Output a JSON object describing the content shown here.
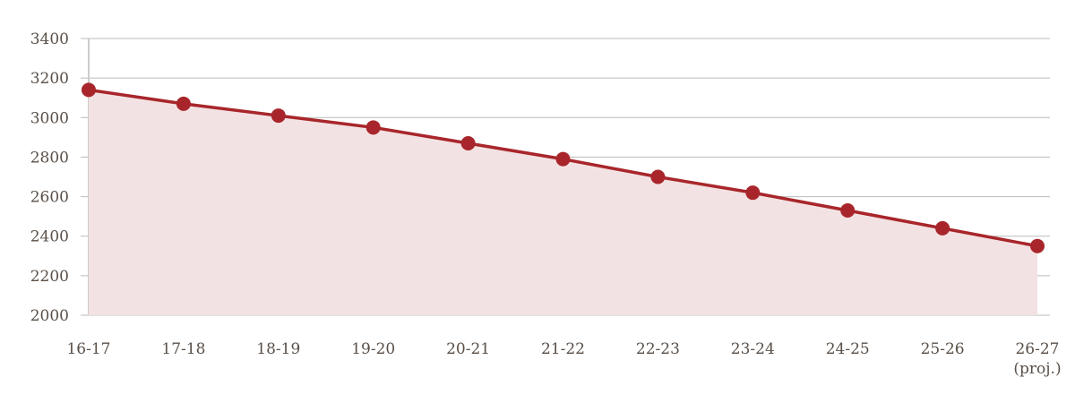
{
  "chart_data": {
    "type": "area",
    "title": "",
    "xlabel": "",
    "ylabel": "",
    "categories": [
      "16-17",
      "17-18",
      "18-19",
      "19-20",
      "20-21",
      "21-22",
      "22-23",
      "23-24",
      "24-25",
      "25-26",
      "26-27 (proj.)"
    ],
    "category_lines": [
      [
        "16-17"
      ],
      [
        "17-18"
      ],
      [
        "18-19"
      ],
      [
        "19-20"
      ],
      [
        "20-21"
      ],
      [
        "21-22"
      ],
      [
        "22-23"
      ],
      [
        "23-24"
      ],
      [
        "24-25"
      ],
      [
        "25-26"
      ],
      [
        "26-27",
        "(proj.)"
      ]
    ],
    "values": [
      3140,
      3070,
      3010,
      2950,
      2870,
      2790,
      2700,
      2620,
      2530,
      2440,
      2350
    ],
    "ylim": [
      2000,
      3400
    ],
    "yticks": [
      2000,
      2200,
      2400,
      2600,
      2800,
      3000,
      3200,
      3400
    ],
    "grid": true,
    "legend": "none",
    "colors": {
      "line": "#a8262b",
      "fill": "#f3e2e3",
      "grid": "#bbbbbb",
      "text": "#5a5048"
    }
  }
}
